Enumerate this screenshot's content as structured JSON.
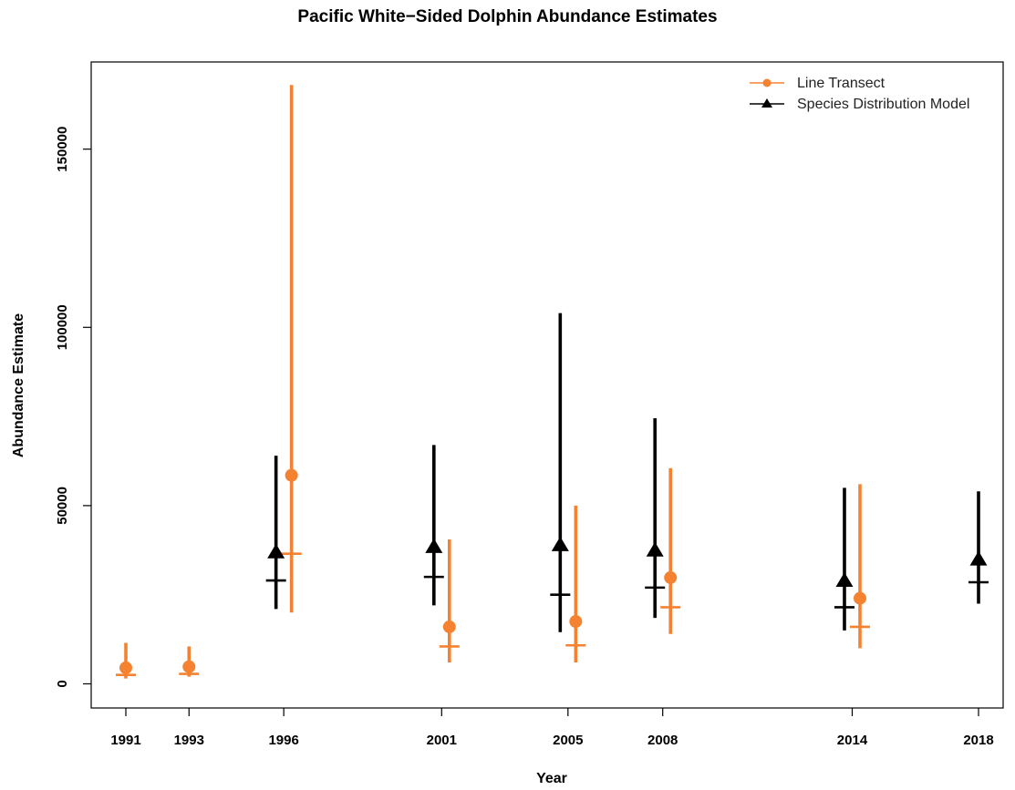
{
  "chart_data": {
    "type": "scatter",
    "title": "Pacific White−Sided Dolphin Abundance Estimates",
    "xlabel": "Year",
    "ylabel": "Abundance Estimate",
    "xlim": [
      1990.5,
      2019
    ],
    "ylim": [
      -7000,
      175000
    ],
    "x_ticks": [
      1991,
      1993,
      1996,
      2001,
      2005,
      2008,
      2014,
      2018
    ],
    "y_ticks": [
      0,
      50000,
      100000,
      150000
    ],
    "grid": false,
    "legend_position": "top-right",
    "series": [
      {
        "name": "Line Transect",
        "marker": "circle",
        "color": "#f58231",
        "points": [
          {
            "x": 1991,
            "estimate": 4500,
            "lower": 1500,
            "upper": 11500,
            "tick": 2500
          },
          {
            "x": 1993,
            "estimate": 4800,
            "lower": 2000,
            "upper": 10500,
            "tick": 2800
          },
          {
            "x": 1996,
            "estimate": 58500,
            "lower": 20000,
            "upper": 168000,
            "tick": 36500
          },
          {
            "x": 2001,
            "estimate": 16000,
            "lower": 6000,
            "upper": 40500,
            "tick": 10500
          },
          {
            "x": 2005,
            "estimate": 17500,
            "lower": 6000,
            "upper": 50000,
            "tick": 10800
          },
          {
            "x": 2008,
            "estimate": 29800,
            "lower": 14000,
            "upper": 60500,
            "tick": 21500
          },
          {
            "x": 2014,
            "estimate": 24000,
            "lower": 10000,
            "upper": 56000,
            "tick": 16000
          }
        ]
      },
      {
        "name": "Species Distribution Model",
        "marker": "triangle",
        "color": "#000000",
        "points": [
          {
            "x": 1996,
            "estimate": 37000,
            "lower": 21000,
            "upper": 64000,
            "tick": 29000
          },
          {
            "x": 2001,
            "estimate": 38500,
            "lower": 22000,
            "upper": 67000,
            "tick": 30000
          },
          {
            "x": 2005,
            "estimate": 39000,
            "lower": 14500,
            "upper": 104000,
            "tick": 25000
          },
          {
            "x": 2008,
            "estimate": 37500,
            "lower": 18500,
            "upper": 74500,
            "tick": 27000
          },
          {
            "x": 2014,
            "estimate": 29000,
            "lower": 15000,
            "upper": 55000,
            "tick": 21500
          },
          {
            "x": 2018,
            "estimate": 35000,
            "lower": 22500,
            "upper": 54000,
            "tick": 28500
          }
        ]
      }
    ]
  }
}
